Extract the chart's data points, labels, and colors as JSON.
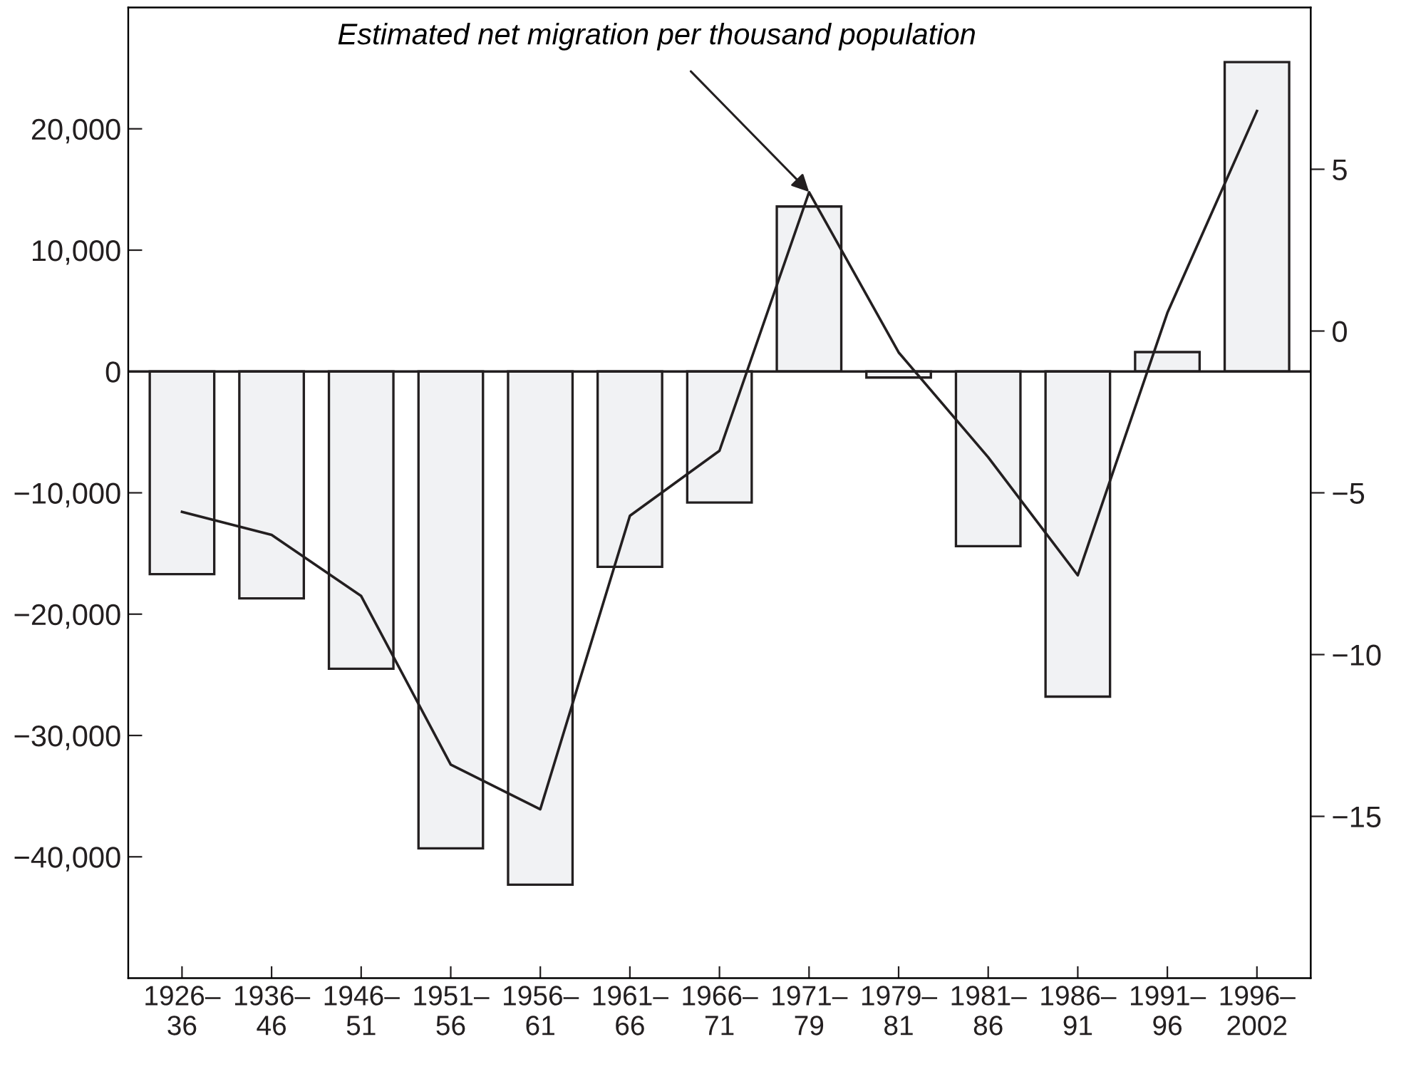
{
  "chart_data": {
    "type": "bar",
    "annotations": [
      {
        "text": "Estimated net migration per thousand population",
        "x": "1971–\n79",
        "y": 14800
      }
    ],
    "categories": [
      "1926–\n36",
      "1936–\n46",
      "1946–\n51",
      "1951–\n56",
      "1956–\n61",
      "1961–\n66",
      "1966–\n71",
      "1971–\n79",
      "1979–\n81",
      "1981–\n86",
      "1986–\n91",
      "1991–\n96",
      "1996–\n2002"
    ],
    "series": [
      {
        "color": "#f1f2f4",
        "values": [
          -16700,
          -18700,
          -24500,
          -39300,
          -42300,
          -16100,
          -10800,
          13600,
          -500,
          -14400,
          -26800,
          1600,
          25500
        ]
      },
      {
        "type": "line",
        "axis": "y2",
        "color": "#231f20",
        "values": [
          -5.59,
          -6.3,
          -8.19,
          -13.4,
          -14.78,
          -5.71,
          -3.7,
          4.29,
          -0.66,
          -3.9,
          -7.55,
          0.56,
          6.8
        ]
      }
    ],
    "ylim": [
      -50000,
      30000
    ],
    "yticks": [
      {
        "value": -40000,
        "label": "−40,000"
      },
      {
        "value": -30000,
        "label": "−30,000"
      },
      {
        "value": -20000,
        "label": "−20,000"
      },
      {
        "value": -10000,
        "label": "−10,000"
      },
      0,
      {
        "value": 10000,
        "label": "10,000"
      },
      {
        "value": 20000,
        "label": "20,000"
      }
    ],
    "y2lim": [
      -20,
      10
    ],
    "y2ticks": [
      {
        "value": -15,
        "label": "−15"
      },
      {
        "value": -10,
        "label": "−10"
      },
      {
        "value": -5,
        "label": "−5"
      },
      0,
      5
    ],
    "ref_lines": [
      {
        "axis": "y",
        "value": 0,
        "color": "#231f20"
      }
    ],
    "grid": false,
    "legend": false
  }
}
